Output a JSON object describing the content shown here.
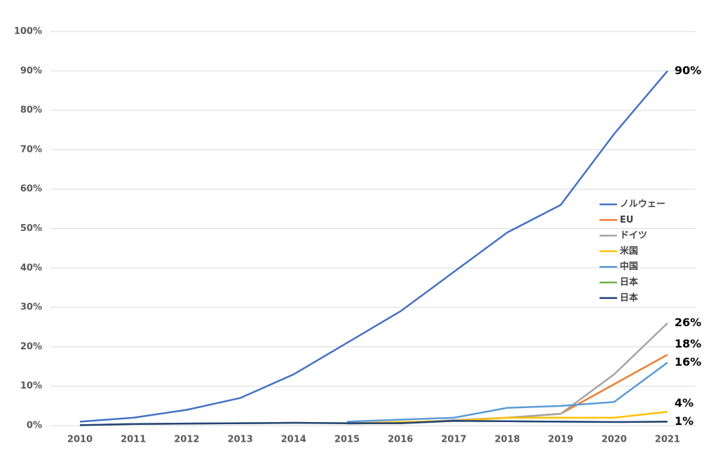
{
  "chart_data": {
    "type": "line",
    "x": [
      2010,
      2011,
      2012,
      2013,
      2014,
      2015,
      2016,
      2017,
      2018,
      2019,
      2020,
      2021
    ],
    "xlim": [
      2010,
      2021
    ],
    "xticks": [
      2010,
      2011,
      2012,
      2013,
      2014,
      2015,
      2016,
      2017,
      2018,
      2019,
      2020,
      2021
    ],
    "ylim": [
      0,
      100
    ],
    "yticks": [
      {
        "value": 0,
        "label": "0%"
      },
      {
        "value": 10,
        "label": "10%"
      },
      {
        "value": 20,
        "label": "20%"
      },
      {
        "value": 30,
        "label": "30%"
      },
      {
        "value": 40,
        "label": "40%"
      },
      {
        "value": 50,
        "label": "50%"
      },
      {
        "value": 60,
        "label": "60%"
      },
      {
        "value": 70,
        "label": "70%"
      },
      {
        "value": 80,
        "label": "80%"
      },
      {
        "value": 90,
        "label": "90%"
      },
      {
        "value": 100,
        "label": "100%"
      }
    ],
    "grid": true,
    "legend": "right",
    "series": [
      {
        "name": "ノルウェー",
        "color": "#4472c4",
        "values": [
          1,
          2,
          4,
          7,
          13,
          21,
          29,
          39,
          49,
          56,
          74,
          90
        ],
        "value_labels": [
          null,
          null,
          null,
          null,
          null,
          null,
          null,
          null,
          null,
          null,
          null,
          "90%"
        ]
      },
      {
        "name": "EU",
        "color": "#ed7d31",
        "values": [
          null,
          null,
          null,
          null,
          null,
          0.5,
          0.8,
          1.3,
          2,
          3,
          10.5,
          18
        ],
        "value_labels": [
          null,
          null,
          null,
          null,
          null,
          null,
          null,
          null,
          null,
          null,
          null,
          "18%"
        ]
      },
      {
        "name": "ドイツ",
        "color": "#a5a5a5",
        "values": [
          null,
          null,
          null,
          null,
          null,
          0.5,
          0.7,
          1.4,
          2,
          3,
          13,
          26
        ],
        "value_labels": [
          null,
          null,
          null,
          null,
          null,
          null,
          null,
          null,
          null,
          null,
          null,
          "26%"
        ]
      },
      {
        "name": "米国",
        "color": "#ffc000",
        "values": [
          null,
          null,
          null,
          null,
          null,
          0.6,
          0.9,
          1.2,
          2,
          2,
          2,
          3.5
        ],
        "value_labels": [
          null,
          null,
          null,
          null,
          null,
          null,
          null,
          null,
          null,
          null,
          null,
          "4%"
        ]
      },
      {
        "name": "中国",
        "color": "#5b9bd5",
        "values": [
          null,
          null,
          null,
          null,
          null,
          1,
          1.5,
          2,
          4.5,
          5,
          6,
          16
        ],
        "value_labels": [
          null,
          null,
          null,
          null,
          null,
          null,
          null,
          null,
          null,
          null,
          null,
          "16%"
        ]
      },
      {
        "name": "日本",
        "color": "#70ad47",
        "values": [
          0.1,
          0.4,
          0.5,
          0.6,
          0.7,
          0.6,
          0.6,
          1.2,
          1.1,
          1,
          0.9,
          1
        ]
      },
      {
        "name": "日本",
        "color": "#264478",
        "values": [
          0.1,
          0.4,
          0.5,
          0.6,
          0.7,
          0.6,
          0.6,
          1.2,
          1.1,
          1,
          0.9,
          1
        ],
        "value_labels": [
          null,
          null,
          null,
          null,
          null,
          null,
          null,
          null,
          null,
          null,
          null,
          "1%"
        ]
      }
    ]
  }
}
